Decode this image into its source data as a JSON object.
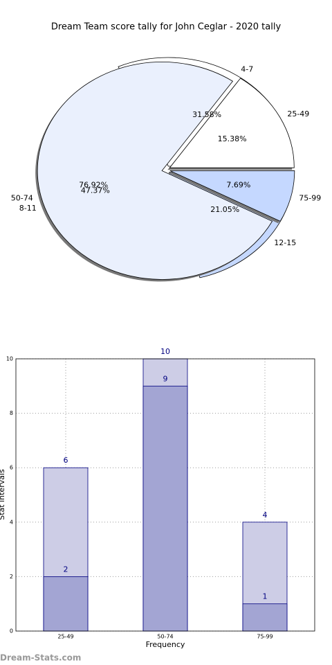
{
  "chart_data": [
    {
      "type": "pie",
      "title": "Dream Team score tally for John Ceglar - 2020 tally",
      "series": [
        {
          "categories": [
            "4-7",
            "8-11",
            "12-15"
          ],
          "values": [
            31.58,
            47.37,
            21.05
          ],
          "value_labels": [
            "31.58%",
            "47.37%",
            "21.05%"
          ],
          "colors": [
            "#ffffff",
            "#eaf0fd",
            "#c5d8ff"
          ]
        },
        {
          "categories": [
            "25-49",
            "50-74",
            "75-99"
          ],
          "values": [
            15.38,
            76.92,
            7.69
          ],
          "value_labels": [
            "15.38%",
            "76.92%",
            "7.69%"
          ],
          "colors": [
            "#ffffff",
            "#eaf0fd",
            "#c5d8ff"
          ]
        }
      ]
    },
    {
      "type": "bar",
      "xlabel": "Frequency",
      "ylabel": "Stat intervals",
      "categories": [
        "25-49",
        "50-74",
        "75-99"
      ],
      "series": [
        {
          "values": [
            6,
            10,
            4
          ],
          "color": "#cdcde6"
        },
        {
          "values": [
            2,
            9,
            1
          ],
          "color": "#a3a5d3"
        }
      ],
      "ylim": [
        0,
        10
      ],
      "yticks": [
        0,
        2,
        4,
        6,
        8,
        10
      ],
      "grid": true
    }
  ],
  "footer": "Dream-Stats.com"
}
